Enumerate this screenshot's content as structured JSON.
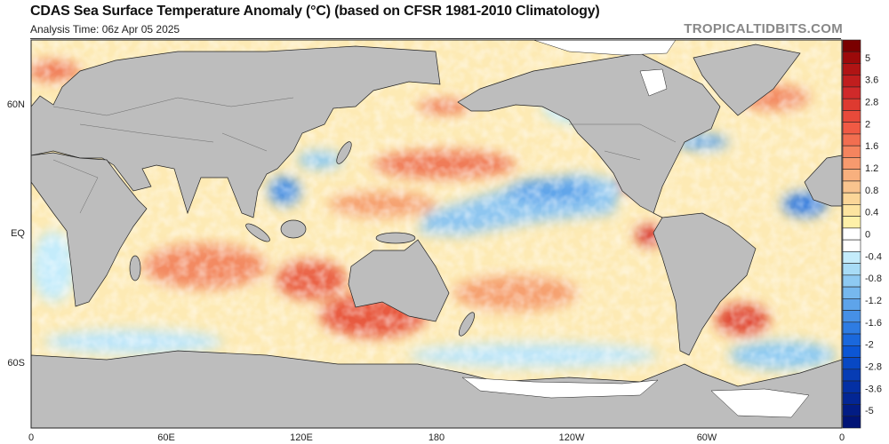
{
  "header": {
    "title": "CDAS Sea Surface Temperature Anomaly (°C) (based on CFSR 1981-2010 Climatology)",
    "subtitle": "Analysis Time: 06z Apr 05 2025",
    "brand": "TROPICALTIDBITS.COM"
  },
  "map": {
    "projection": "equirectangular",
    "x_ticks": [
      "0",
      "60E",
      "120E",
      "180",
      "120W",
      "60W",
      "0"
    ],
    "y_ticks": [
      "60N",
      "EQ",
      "60S"
    ],
    "land_color": "#bdbdbd",
    "ice_color": "#ffffff"
  },
  "colorbar": {
    "labels": [
      "5",
      "3.6",
      "2.8",
      "2",
      "1.6",
      "1.2",
      "0.8",
      "0.4",
      "0",
      "-0.4",
      "-0.8",
      "-1.2",
      "-1.6",
      "-2",
      "-2.8",
      "-3.6",
      "-5"
    ],
    "colors": [
      "#7a0000",
      "#9c0a0a",
      "#b01414",
      "#c01e1e",
      "#d02a2a",
      "#de3a30",
      "#e84a3a",
      "#f05a44",
      "#f26e50",
      "#f5845e",
      "#f79a6e",
      "#f8b07e",
      "#f9c48e",
      "#fbd698",
      "#fde4a0",
      "#fef0a8",
      "#ffffff",
      "#ffffff",
      "#c4ecfb",
      "#a8dcf6",
      "#8ecaf2",
      "#76b8ee",
      "#5ea4ea",
      "#4690e6",
      "#2e7ce2",
      "#1a68dc",
      "#0c56d4",
      "#0848c4",
      "#063cb4",
      "#0430a4",
      "#032694",
      "#021c84",
      "#011476"
    ]
  }
}
